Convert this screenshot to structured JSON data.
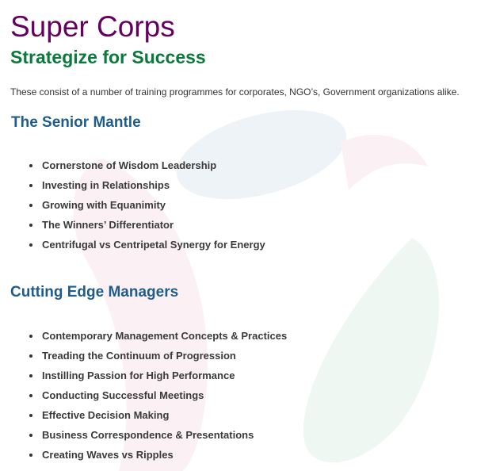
{
  "header": {
    "title": "Super Corps",
    "subtitle": "Strategize for Success"
  },
  "intro": "These consist of a number of training programmes for corporates, NGO’s, Government organizations alike.",
  "sections": [
    {
      "heading": "The Senior Mantle",
      "items": [
        "Cornerstone of Wisdom Leadership",
        "Investing in Relationships",
        "Growing with Equanimity",
        "The Winners’ Differentiator",
        "Centrifugal vs Centripetal Synergy for Energy"
      ]
    },
    {
      "heading": "Cutting Edge Managers",
      "items": [
        "Contemporary Management Concepts & Practices",
        "Treading the Continuum of Progression",
        "Instilling Passion for High Performance",
        "Conducting Successful Meetings",
        "Effective Decision Making",
        "Business Correspondence & Presentations",
        "Creating Waves vs Ripples"
      ]
    }
  ],
  "colors": {
    "title": "#650060",
    "subtitle": "#0a7a3c",
    "heading": "#1e5c8c",
    "text": "#3a3a3a"
  }
}
